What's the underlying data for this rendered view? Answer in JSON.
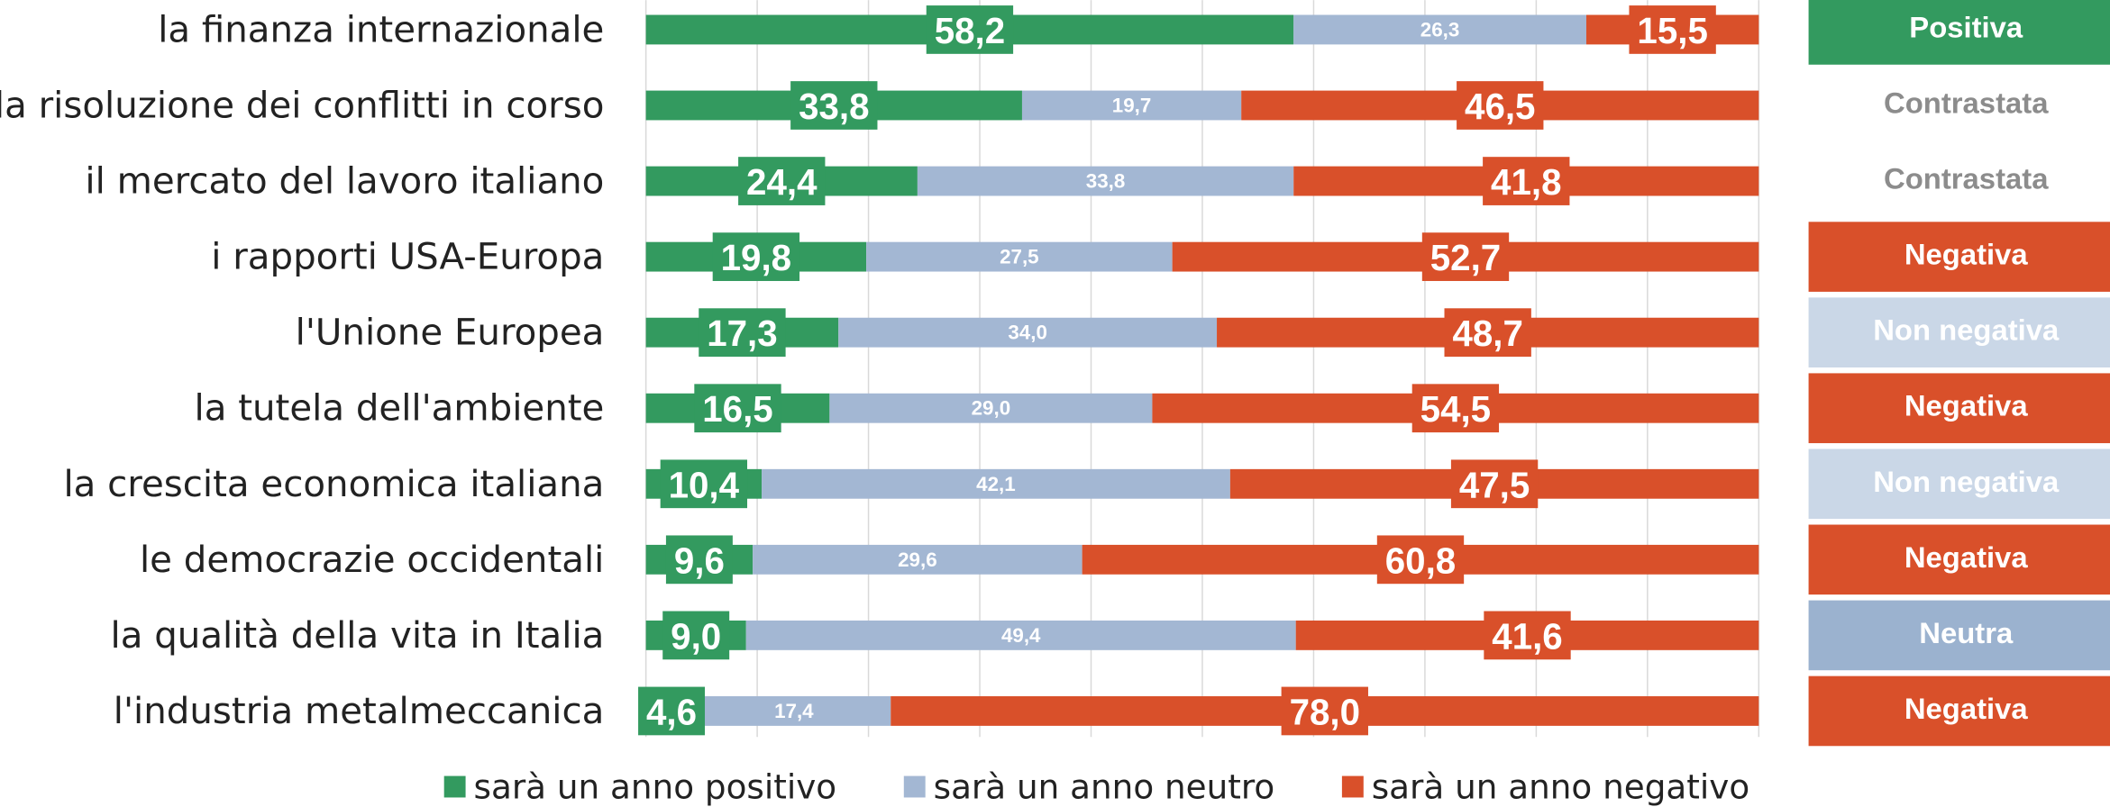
{
  "chart_data": {
    "type": "stacked_barh",
    "categories": [
      "la finanza internazionale",
      "la risoluzione dei conflitti in corso",
      "il mercato del lavoro italiano",
      "i rapporti USA-Europa",
      "l'Unione Europea",
      "la tutela dell'ambiente",
      "la crescita economica italiana",
      "le democrazie occidentali",
      "la qualità della vita in Italia",
      "l'industria metalmeccanica"
    ],
    "series": [
      {
        "name": "sarà un anno positivo",
        "color": "#339a5f",
        "values": [
          58.2,
          33.8,
          24.4,
          19.8,
          17.3,
          16.5,
          10.4,
          9.6,
          9.0,
          4.6
        ],
        "value_labels": [
          "58,2",
          "33,8",
          "24,4",
          "19,8",
          "17,3",
          "16,5",
          "10,4",
          "9,6",
          "9,0",
          "4,6"
        ]
      },
      {
        "name": "sarà un anno neutro",
        "color": "#a3b7d3",
        "values": [
          26.3,
          19.7,
          33.8,
          27.5,
          34.0,
          29.0,
          42.1,
          29.6,
          49.4,
          17.4
        ],
        "value_labels": [
          "26,3",
          "19,7",
          "33,8",
          "27,5",
          "34,0",
          "29,0",
          "42,1",
          "29,6",
          "49,4",
          "17,4"
        ]
      },
      {
        "name": "sarà un anno negativo",
        "color": "#d9502a",
        "values": [
          15.5,
          46.5,
          41.8,
          52.7,
          48.7,
          54.5,
          47.5,
          60.8,
          41.6,
          78.0
        ],
        "value_labels": [
          "15,5",
          "46,5",
          "41,8",
          "52,7",
          "48,7",
          "54,5",
          "47,5",
          "60,8",
          "41,6",
          "78,0"
        ]
      }
    ],
    "xlim": [
      0,
      100
    ],
    "xticks": [
      0,
      10,
      20,
      30,
      40,
      50,
      60,
      70,
      80,
      90,
      100
    ],
    "grid": true,
    "verdicts": [
      {
        "label": "Positiva",
        "color": "#339a5f",
        "text_color": "#ffffff"
      },
      {
        "label": "Contrastata",
        "color": "#ffffff",
        "text_color": "#8c8c8c"
      },
      {
        "label": "Contrastata",
        "color": "#ffffff",
        "text_color": "#8c8c8c"
      },
      {
        "label": "Negativa",
        "color": "#d9502a",
        "text_color": "#ffffff"
      },
      {
        "label": "Non negativa",
        "color": "#cad7e7",
        "text_color": "#ffffff"
      },
      {
        "label": "Negativa",
        "color": "#d9502a",
        "text_color": "#ffffff"
      },
      {
        "label": "Non negativa",
        "color": "#cad7e7",
        "text_color": "#ffffff"
      },
      {
        "label": "Negativa",
        "color": "#d9502a",
        "text_color": "#ffffff"
      },
      {
        "label": "Neutra",
        "color": "#9bb2cf",
        "text_color": "#ffffff"
      },
      {
        "label": "Negativa",
        "color": "#d9502a",
        "text_color": "#ffffff"
      }
    ]
  }
}
